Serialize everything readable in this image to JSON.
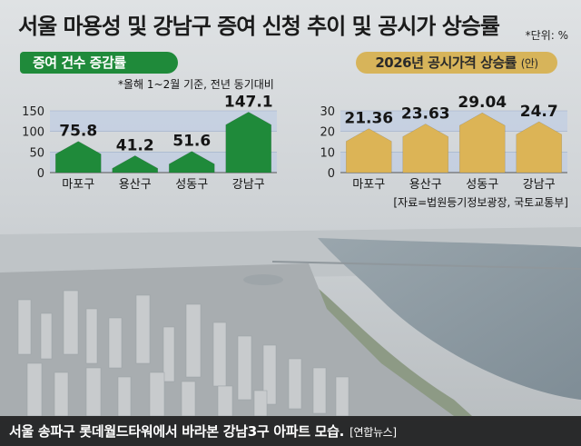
{
  "title": "서울 마용성 및 강남구 증여 신청 추이 및 공시가 상승률",
  "unit": "*단위: %",
  "left_label": "증여 건수 증감률",
  "right_label": "2026년 공시가격 상승률",
  "right_label_suffix": "(안)",
  "note": "*올해 1~2월 기준, 전년 동기대비",
  "source": "[자료=법원등기정보광장, 국토교통부]",
  "caption": "서울 송파구 롯데월드타워에서 바라본 강남3구 아파트 모습.",
  "credit": "[연합뉴스]",
  "colors": {
    "green": "#1f8a3a",
    "gold": "#dcb456",
    "band": "#b9cbe6",
    "caption_bg": "#111111"
  },
  "chart_data": [
    {
      "type": "bar",
      "categories": [
        "마포구",
        "용산구",
        "성동구",
        "강남구"
      ],
      "values": [
        75.8,
        41.2,
        51.6,
        147.1
      ],
      "value_labels": [
        "75.8",
        "41.2",
        "51.6",
        "147.1"
      ],
      "yticks": [
        "0",
        "50",
        "100",
        "150"
      ],
      "ylim": [
        0,
        150
      ],
      "grid": true
    },
    {
      "type": "bar",
      "categories": [
        "마포구",
        "용산구",
        "성동구",
        "강남구"
      ],
      "values": [
        21.36,
        23.63,
        29.04,
        24.7
      ],
      "value_labels": [
        "21.36",
        "23.63",
        "29.04",
        "24.7"
      ],
      "yticks": [
        "0",
        "10",
        "20",
        "30"
      ],
      "ylim": [
        0,
        30
      ],
      "grid": true
    }
  ]
}
